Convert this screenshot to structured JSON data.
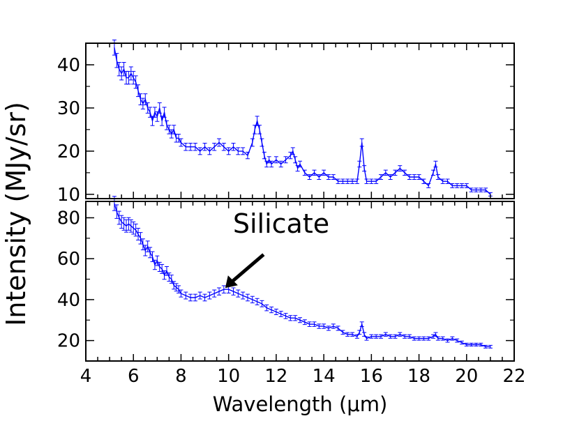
{
  "chart_data": {
    "type": "line",
    "xlabel": "Wavelength (μm)",
    "ylabel": "Intensity (MJy/sr)",
    "xlim": [
      4,
      22
    ],
    "xticks": [
      "4",
      "6",
      "8",
      "10",
      "12",
      "14",
      "16",
      "18",
      "20",
      "22"
    ],
    "panels": [
      {
        "name": "top",
        "ylim": [
          9,
          45
        ],
        "yticks": [
          "10",
          "20",
          "30",
          "40"
        ],
        "series": [
          {
            "color": "#0000ff",
            "x": [
              5.2,
              5.3,
              5.4,
              5.5,
              5.6,
              5.7,
              5.8,
              5.9,
              6.0,
              6.1,
              6.2,
              6.3,
              6.4,
              6.5,
              6.6,
              6.7,
              6.8,
              6.9,
              7.0,
              7.1,
              7.2,
              7.3,
              7.4,
              7.5,
              7.6,
              7.7,
              7.8,
              7.9,
              8.0,
              8.2,
              8.4,
              8.6,
              8.8,
              9.0,
              9.2,
              9.4,
              9.6,
              9.8,
              10.0,
              10.2,
              10.4,
              10.6,
              10.8,
              11.0,
              11.1,
              11.2,
              11.3,
              11.4,
              11.5,
              11.6,
              11.7,
              11.8,
              12.0,
              12.2,
              12.4,
              12.6,
              12.7,
              12.8,
              12.9,
              13.0,
              13.2,
              13.4,
              13.6,
              13.8,
              14.0,
              14.2,
              14.4,
              14.6,
              14.8,
              15.0,
              15.2,
              15.4,
              15.5,
              15.6,
              15.7,
              15.8,
              16.0,
              16.2,
              16.4,
              16.6,
              16.8,
              17.0,
              17.2,
              17.4,
              17.6,
              17.8,
              18.0,
              18.2,
              18.4,
              18.6,
              18.7,
              18.8,
              19.0,
              19.2,
              19.4,
              19.6,
              19.8,
              20.0,
              20.2,
              20.4,
              20.6,
              20.8,
              21.0
            ],
            "y": [
              44,
              41,
              39,
              38,
              39,
              37,
              37,
              38,
              37,
              36,
              34,
              32,
              31,
              32,
              30,
              29,
              27,
              29,
              28,
              30,
              27,
              29,
              26,
              25,
              24,
              25,
              23,
              23,
              22,
              21,
              21,
              21,
              20,
              21,
              20,
              21,
              22,
              21,
              20,
              21,
              20,
              20,
              19,
              22,
              25,
              27,
              25,
              22,
              19,
              17,
              18,
              17,
              18,
              17,
              18,
              19,
              20,
              18,
              16,
              17,
              15,
              14,
              15,
              14,
              15,
              14,
              14,
              13,
              13,
              13,
              13,
              13,
              17,
              22,
              16,
              13,
              13,
              13,
              14,
              15,
              14,
              15,
              16,
              15,
              14,
              14,
              14,
              13,
              12,
              15,
              17,
              14,
              13,
              13,
              12,
              12,
              12,
              12,
              11,
              11,
              11,
              11,
              10
            ]
          }
        ]
      },
      {
        "name": "bottom",
        "ylim": [
          10,
          88
        ],
        "yticks": [
          "20",
          "40",
          "60",
          "80"
        ],
        "series": [
          {
            "color": "#0000ff",
            "x": [
              5.2,
              5.3,
              5.4,
              5.5,
              5.6,
              5.7,
              5.8,
              5.9,
              6.0,
              6.1,
              6.2,
              6.3,
              6.4,
              6.5,
              6.6,
              6.7,
              6.8,
              6.9,
              7.0,
              7.1,
              7.2,
              7.3,
              7.4,
              7.5,
              7.6,
              7.7,
              7.8,
              7.9,
              8.0,
              8.2,
              8.4,
              8.6,
              8.8,
              9.0,
              9.2,
              9.4,
              9.6,
              9.8,
              10.0,
              10.2,
              10.4,
              10.6,
              10.8,
              11.0,
              11.2,
              11.4,
              11.6,
              11.8,
              12.0,
              12.2,
              12.4,
              12.6,
              12.8,
              13.0,
              13.2,
              13.4,
              13.6,
              13.8,
              14.0,
              14.2,
              14.4,
              14.6,
              14.8,
              15.0,
              15.2,
              15.4,
              15.5,
              15.6,
              15.7,
              15.8,
              16.0,
              16.2,
              16.4,
              16.6,
              16.8,
              17.0,
              17.2,
              17.4,
              17.6,
              17.8,
              18.0,
              18.2,
              18.4,
              18.6,
              18.7,
              18.8,
              19.0,
              19.2,
              19.4,
              19.6,
              19.8,
              20.0,
              20.2,
              20.4,
              20.6,
              20.8,
              21.0
            ],
            "y": [
              87,
              83,
              80,
              78,
              77,
              76,
              77,
              76,
              75,
              74,
              72,
              70,
              67,
              64,
              66,
              63,
              61,
              57,
              59,
              56,
              55,
              52,
              54,
              51,
              50,
              47,
              46,
              45,
              43,
              42,
              41,
              41,
              42,
              41,
              42,
              43,
              44,
              45,
              45,
              44,
              43,
              42,
              41,
              40,
              39,
              38,
              36,
              35,
              34,
              33,
              32,
              31,
              31,
              30,
              29,
              28,
              28,
              27,
              27,
              26,
              27,
              26,
              24,
              23,
              23,
              22,
              24,
              28,
              23,
              21,
              22,
              22,
              22,
              23,
              22,
              22,
              23,
              22,
              22,
              21,
              21,
              21,
              21,
              22,
              23,
              21,
              21,
              20,
              21,
              20,
              19,
              18,
              18,
              18,
              18,
              17,
              17
            ]
          }
        ]
      }
    ],
    "annotations": [
      {
        "text": "Silicate",
        "panel": "bottom",
        "x": 9.8,
        "y": 45
      }
    ]
  }
}
